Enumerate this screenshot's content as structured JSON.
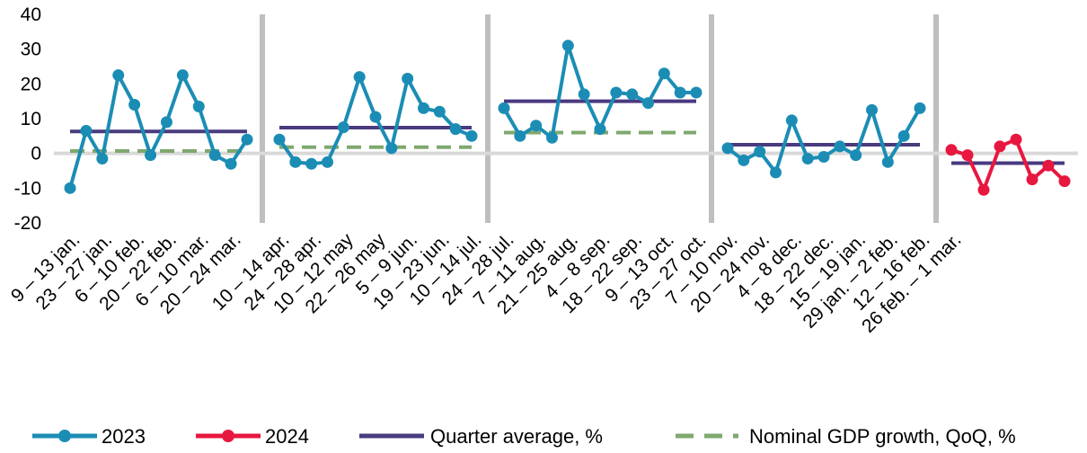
{
  "chart_data": {
    "type": "line",
    "ylim": [
      -20,
      40
    ],
    "yticks": [
      -20,
      -10,
      0,
      10,
      20,
      30,
      40
    ],
    "colors": {
      "s2023": "#1b8db5",
      "s2024": "#e8173f",
      "quarter_avg": "#4a3a7f",
      "gdp": "#7fa86e",
      "zero_line": "#d9d9d9",
      "separator": "#bfbfbf"
    },
    "x_labels": [
      "9 – 13 jan.",
      "23 – 27 jan.",
      "6 – 10 feb.",
      "20 – 22 feb.",
      "6 – 10 mar.",
      "20 – 24 mar.",
      "10 – 14 apr.",
      "24 – 28 apr.",
      "10 – 12 may",
      "22 – 26 may",
      "5 – 9 jun.",
      "19 – 23 jun.",
      "10 – 14 jul.",
      "24 – 28 jul.",
      "7 – 11 aug.",
      "21 – 25 aug.",
      "4 – 8 sep.",
      "18 – 22 sep.",
      "9 – 13 oct.",
      "23 – 27 oct.",
      "7 – 10 nov.",
      "20 – 24 nov.",
      "4 – 8 dec.",
      "18 – 22 dec.",
      "15 – 19 jan.",
      "29 jan. – 2 feb.",
      "12 – 16 feb.",
      "26 feb. – 1 mar."
    ],
    "groups": [
      {
        "series": "2023",
        "values": [
          -10,
          6.5,
          -1.5,
          22.5,
          14,
          -0.5,
          9,
          22.5,
          13.5,
          -0.5,
          -3,
          4
        ],
        "quarter_average": 6.3,
        "nominal_gdp_growth": 0.7
      },
      {
        "series": "2023",
        "values": [
          4,
          -2.5,
          -3,
          -2.5,
          7.5,
          22,
          10.5,
          1.5,
          21.5,
          13,
          12,
          7,
          5
        ],
        "quarter_average": 7.4,
        "nominal_gdp_growth": 1.8
      },
      {
        "series": "2023",
        "values": [
          13,
          5,
          8,
          4.5,
          31,
          17,
          7,
          17.5,
          17,
          14.5,
          23,
          17.5,
          17.5
        ],
        "quarter_average": 15,
        "nominal_gdp_growth": 6
      },
      {
        "series": "2023",
        "values": [
          1.5,
          -2,
          0.5,
          -5.5,
          9.5,
          -1.5,
          -1,
          2,
          -0.5,
          12.5,
          -2.5,
          5,
          13
        ],
        "quarter_average": 2.5,
        "nominal_gdp_growth": null
      },
      {
        "series": "2024",
        "values": [
          1,
          -0.5,
          -10.5,
          2,
          4,
          -7.5,
          -3.5,
          -8
        ],
        "quarter_average": -2.8,
        "nominal_gdp_growth": null
      }
    ],
    "legend": [
      {
        "key": "s2023",
        "label": "2023",
        "style": "line-marker"
      },
      {
        "key": "s2024",
        "label": "2024",
        "style": "line-marker"
      },
      {
        "key": "quarter_avg",
        "label": "Quarter average, %",
        "style": "solid"
      },
      {
        "key": "gdp",
        "label": "Nominal GDP growth, QoQ, %",
        "style": "dashed"
      }
    ]
  }
}
